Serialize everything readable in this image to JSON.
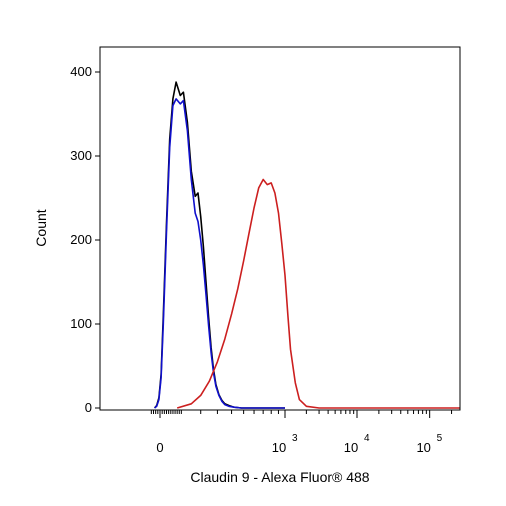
{
  "chart_data": {
    "type": "line",
    "xlabel": "Claudin 9 - Alexa Fluor® 488",
    "ylabel": "Count",
    "x_scale": "biexponential",
    "xlim": [
      -50,
      300000
    ],
    "ylim": [
      0,
      430
    ],
    "y_ticks": [
      0,
      100,
      200,
      300,
      400
    ],
    "y_tick_labels": [
      "0",
      "100",
      "200",
      "300",
      "400"
    ],
    "x_ticks": [
      {
        "value": 0,
        "base": "0",
        "exp": ""
      },
      {
        "value": 1000,
        "base": "10",
        "exp": "3"
      },
      {
        "value": 10000,
        "base": "10",
        "exp": "4"
      },
      {
        "value": 100000,
        "base": "10",
        "exp": "5"
      }
    ],
    "grid": false,
    "series": [
      {
        "color": "#000000",
        "x": [
          -25,
          -15,
          -5,
          5,
          15,
          30,
          45,
          60,
          75,
          95,
          110,
          130,
          150,
          170,
          185,
          200,
          215,
          230,
          245,
          260,
          275,
          290,
          310,
          330,
          350,
          380,
          420,
          480,
          550,
          650,
          800,
          1000
        ],
        "y": [
          0,
          3,
          12,
          40,
          110,
          220,
          320,
          368,
          388,
          372,
          376,
          340,
          282,
          252,
          256,
          228,
          192,
          150,
          108,
          72,
          46,
          28,
          16,
          9,
          5,
          3,
          1,
          0,
          0,
          0,
          0,
          0
        ]
      },
      {
        "color": "#1010cc",
        "x": [
          -25,
          -15,
          -5,
          5,
          15,
          30,
          45,
          60,
          75,
          95,
          110,
          130,
          150,
          170,
          185,
          200,
          215,
          230,
          245,
          260,
          275,
          290,
          310,
          330,
          350,
          380,
          420,
          480,
          550,
          650,
          800,
          1000
        ],
        "y": [
          0,
          2,
          10,
          36,
          100,
          210,
          310,
          360,
          368,
          362,
          366,
          330,
          272,
          232,
          222,
          200,
          170,
          135,
          98,
          66,
          42,
          26,
          15,
          8,
          4,
          2,
          1,
          0,
          0,
          0,
          0,
          0
        ]
      },
      {
        "color": "#cc1f1f",
        "x": [
          80,
          150,
          200,
          250,
          300,
          350,
          400,
          450,
          500,
          550,
          600,
          650,
          700,
          750,
          800,
          850,
          900,
          950,
          1000,
          1100,
          1200,
          1400,
          1600,
          2000,
          3000,
          10000,
          100000,
          300000
        ],
        "y": [
          0,
          5,
          15,
          32,
          55,
          82,
          112,
          142,
          175,
          208,
          238,
          262,
          272,
          266,
          268,
          256,
          232,
          196,
          158,
          110,
          70,
          30,
          10,
          2,
          0,
          0,
          0,
          0
        ]
      }
    ]
  }
}
